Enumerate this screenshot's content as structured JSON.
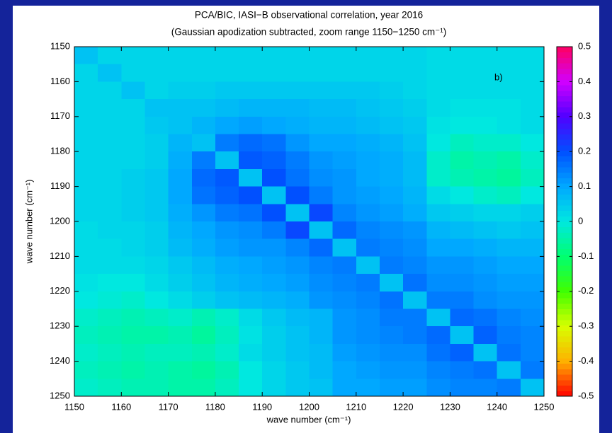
{
  "chart_data": {
    "type": "heatmap",
    "title": "PCA/BIC, IASI−B observational correlation, year 2016",
    "subtitle": "(Gaussian apodization subtracted, zoom range 1150−1250 cm⁻¹)",
    "annotation": "b)",
    "x_label": "wave number (cm⁻¹)",
    "y_label": "wave number (cm⁻¹)",
    "xlim": [
      1150,
      1250
    ],
    "ylim": [
      1150,
      1250
    ],
    "y_reversed": true,
    "xticks": [
      1150,
      1160,
      1170,
      1180,
      1190,
      1200,
      1210,
      1220,
      1230,
      1240,
      1250
    ],
    "yticks": [
      1150,
      1160,
      1170,
      1180,
      1190,
      1200,
      1210,
      1220,
      1230,
      1240,
      1250
    ],
    "zlim": [
      -0.5,
      0.5
    ],
    "zticks": [
      0.5,
      0.4,
      0.3,
      0.2,
      0.1,
      0,
      -0.1,
      -0.2,
      -0.3,
      -0.4,
      -0.5
    ],
    "colors": [
      "#ff0000",
      "#ffb000",
      "#d8ff00",
      "#40ff00",
      "#00ff70",
      "#00e8e0",
      "#00a8ff",
      "#0050ff",
      "#5000ff",
      "#d000ff",
      "#ff0060"
    ],
    "z": [
      [
        0.06,
        0.03,
        0.03,
        0.03,
        0.03,
        0.03,
        0.03,
        0.03,
        0.03,
        0.03,
        0.03,
        0.03,
        0.03,
        0.03,
        0.03,
        0.02,
        0.02,
        0.02,
        0.02,
        0.02
      ],
      [
        0.03,
        0.06,
        0.03,
        0.03,
        0.03,
        0.03,
        0.03,
        0.03,
        0.03,
        0.03,
        0.03,
        0.03,
        0.03,
        0.03,
        0.03,
        0.02,
        0.02,
        0.02,
        0.02,
        0.02
      ],
      [
        0.03,
        0.03,
        0.06,
        0.03,
        0.04,
        0.04,
        0.05,
        0.05,
        0.05,
        0.05,
        0.05,
        0.05,
        0.05,
        0.04,
        0.03,
        0.02,
        0.02,
        0.02,
        0.02,
        0.02
      ],
      [
        0.03,
        0.03,
        0.03,
        0.06,
        0.06,
        0.06,
        0.07,
        0.08,
        0.08,
        0.08,
        0.07,
        0.07,
        0.06,
        0.05,
        0.04,
        0.02,
        0.01,
        0.01,
        0.01,
        0.02
      ],
      [
        0.03,
        0.03,
        0.03,
        0.05,
        0.06,
        0.08,
        0.1,
        0.11,
        0.1,
        0.09,
        0.08,
        0.08,
        0.07,
        0.06,
        0.05,
        0.01,
        0.0,
        0.0,
        0.01,
        0.02
      ],
      [
        0.03,
        0.03,
        0.03,
        0.04,
        0.08,
        0.06,
        0.15,
        0.17,
        0.16,
        0.12,
        0.1,
        0.1,
        0.09,
        0.08,
        0.06,
        0.0,
        -0.03,
        -0.02,
        -0.02,
        0.0
      ],
      [
        0.03,
        0.03,
        0.03,
        0.04,
        0.09,
        0.15,
        0.06,
        0.19,
        0.18,
        0.15,
        0.12,
        0.11,
        0.1,
        0.09,
        0.07,
        -0.02,
        -0.05,
        -0.04,
        -0.05,
        -0.02
      ],
      [
        0.03,
        0.03,
        0.04,
        0.05,
        0.1,
        0.17,
        0.19,
        0.06,
        0.2,
        0.16,
        0.13,
        0.12,
        0.1,
        0.09,
        0.07,
        -0.02,
        -0.04,
        -0.05,
        -0.06,
        -0.03
      ],
      [
        0.03,
        0.03,
        0.04,
        0.05,
        0.1,
        0.16,
        0.18,
        0.2,
        0.06,
        0.2,
        0.15,
        0.12,
        0.11,
        0.1,
        0.08,
        0.02,
        0.0,
        -0.02,
        -0.03,
        0.0
      ],
      [
        0.03,
        0.03,
        0.04,
        0.05,
        0.09,
        0.12,
        0.15,
        0.16,
        0.2,
        0.06,
        0.21,
        0.14,
        0.12,
        0.11,
        0.09,
        0.05,
        0.04,
        0.03,
        0.03,
        0.04
      ],
      [
        0.02,
        0.03,
        0.03,
        0.04,
        0.08,
        0.1,
        0.12,
        0.13,
        0.15,
        0.21,
        0.06,
        0.17,
        0.14,
        0.13,
        0.12,
        0.08,
        0.07,
        0.06,
        0.05,
        0.06
      ],
      [
        0.02,
        0.02,
        0.03,
        0.04,
        0.07,
        0.09,
        0.11,
        0.12,
        0.12,
        0.14,
        0.17,
        0.06,
        0.15,
        0.14,
        0.13,
        0.1,
        0.1,
        0.09,
        0.08,
        0.08
      ],
      [
        0.02,
        0.02,
        0.02,
        0.03,
        0.05,
        0.07,
        0.09,
        0.1,
        0.11,
        0.12,
        0.14,
        0.15,
        0.06,
        0.15,
        0.14,
        0.12,
        0.12,
        0.11,
        0.1,
        0.1
      ],
      [
        0.01,
        0.0,
        0.0,
        0.02,
        0.04,
        0.06,
        0.08,
        0.09,
        0.1,
        0.11,
        0.13,
        0.14,
        0.15,
        0.06,
        0.16,
        0.13,
        0.13,
        0.12,
        0.11,
        0.11
      ],
      [
        0.0,
        -0.01,
        -0.02,
        0.0,
        0.02,
        0.04,
        0.06,
        0.07,
        0.08,
        0.09,
        0.12,
        0.13,
        0.14,
        0.16,
        0.06,
        0.15,
        0.15,
        0.13,
        0.12,
        0.12
      ],
      [
        -0.02,
        -0.03,
        -0.04,
        -0.03,
        -0.02,
        -0.04,
        -0.02,
        0.02,
        0.05,
        0.07,
        0.08,
        0.12,
        0.13,
        0.15,
        0.15,
        0.06,
        0.17,
        0.16,
        0.14,
        0.13
      ],
      [
        -0.03,
        -0.04,
        -0.05,
        -0.05,
        -0.04,
        -0.06,
        -0.03,
        0.01,
        0.04,
        0.06,
        0.08,
        0.12,
        0.13,
        0.14,
        0.15,
        0.17,
        0.06,
        0.18,
        0.15,
        0.14
      ],
      [
        -0.02,
        -0.03,
        -0.04,
        -0.03,
        -0.03,
        -0.04,
        -0.02,
        0.02,
        0.04,
        0.06,
        0.07,
        0.11,
        0.12,
        0.13,
        0.13,
        0.16,
        0.18,
        0.06,
        0.16,
        0.14
      ],
      [
        -0.03,
        -0.04,
        -0.05,
        -0.04,
        -0.05,
        -0.06,
        -0.04,
        0.0,
        0.03,
        0.05,
        0.07,
        0.1,
        0.11,
        0.12,
        0.12,
        0.14,
        0.15,
        0.16,
        0.06,
        0.15
      ],
      [
        -0.02,
        -0.03,
        -0.04,
        -0.04,
        -0.05,
        -0.05,
        -0.03,
        0.0,
        0.03,
        0.05,
        0.06,
        0.1,
        0.1,
        0.11,
        0.11,
        0.13,
        0.14,
        0.14,
        0.15,
        0.06
      ]
    ]
  }
}
